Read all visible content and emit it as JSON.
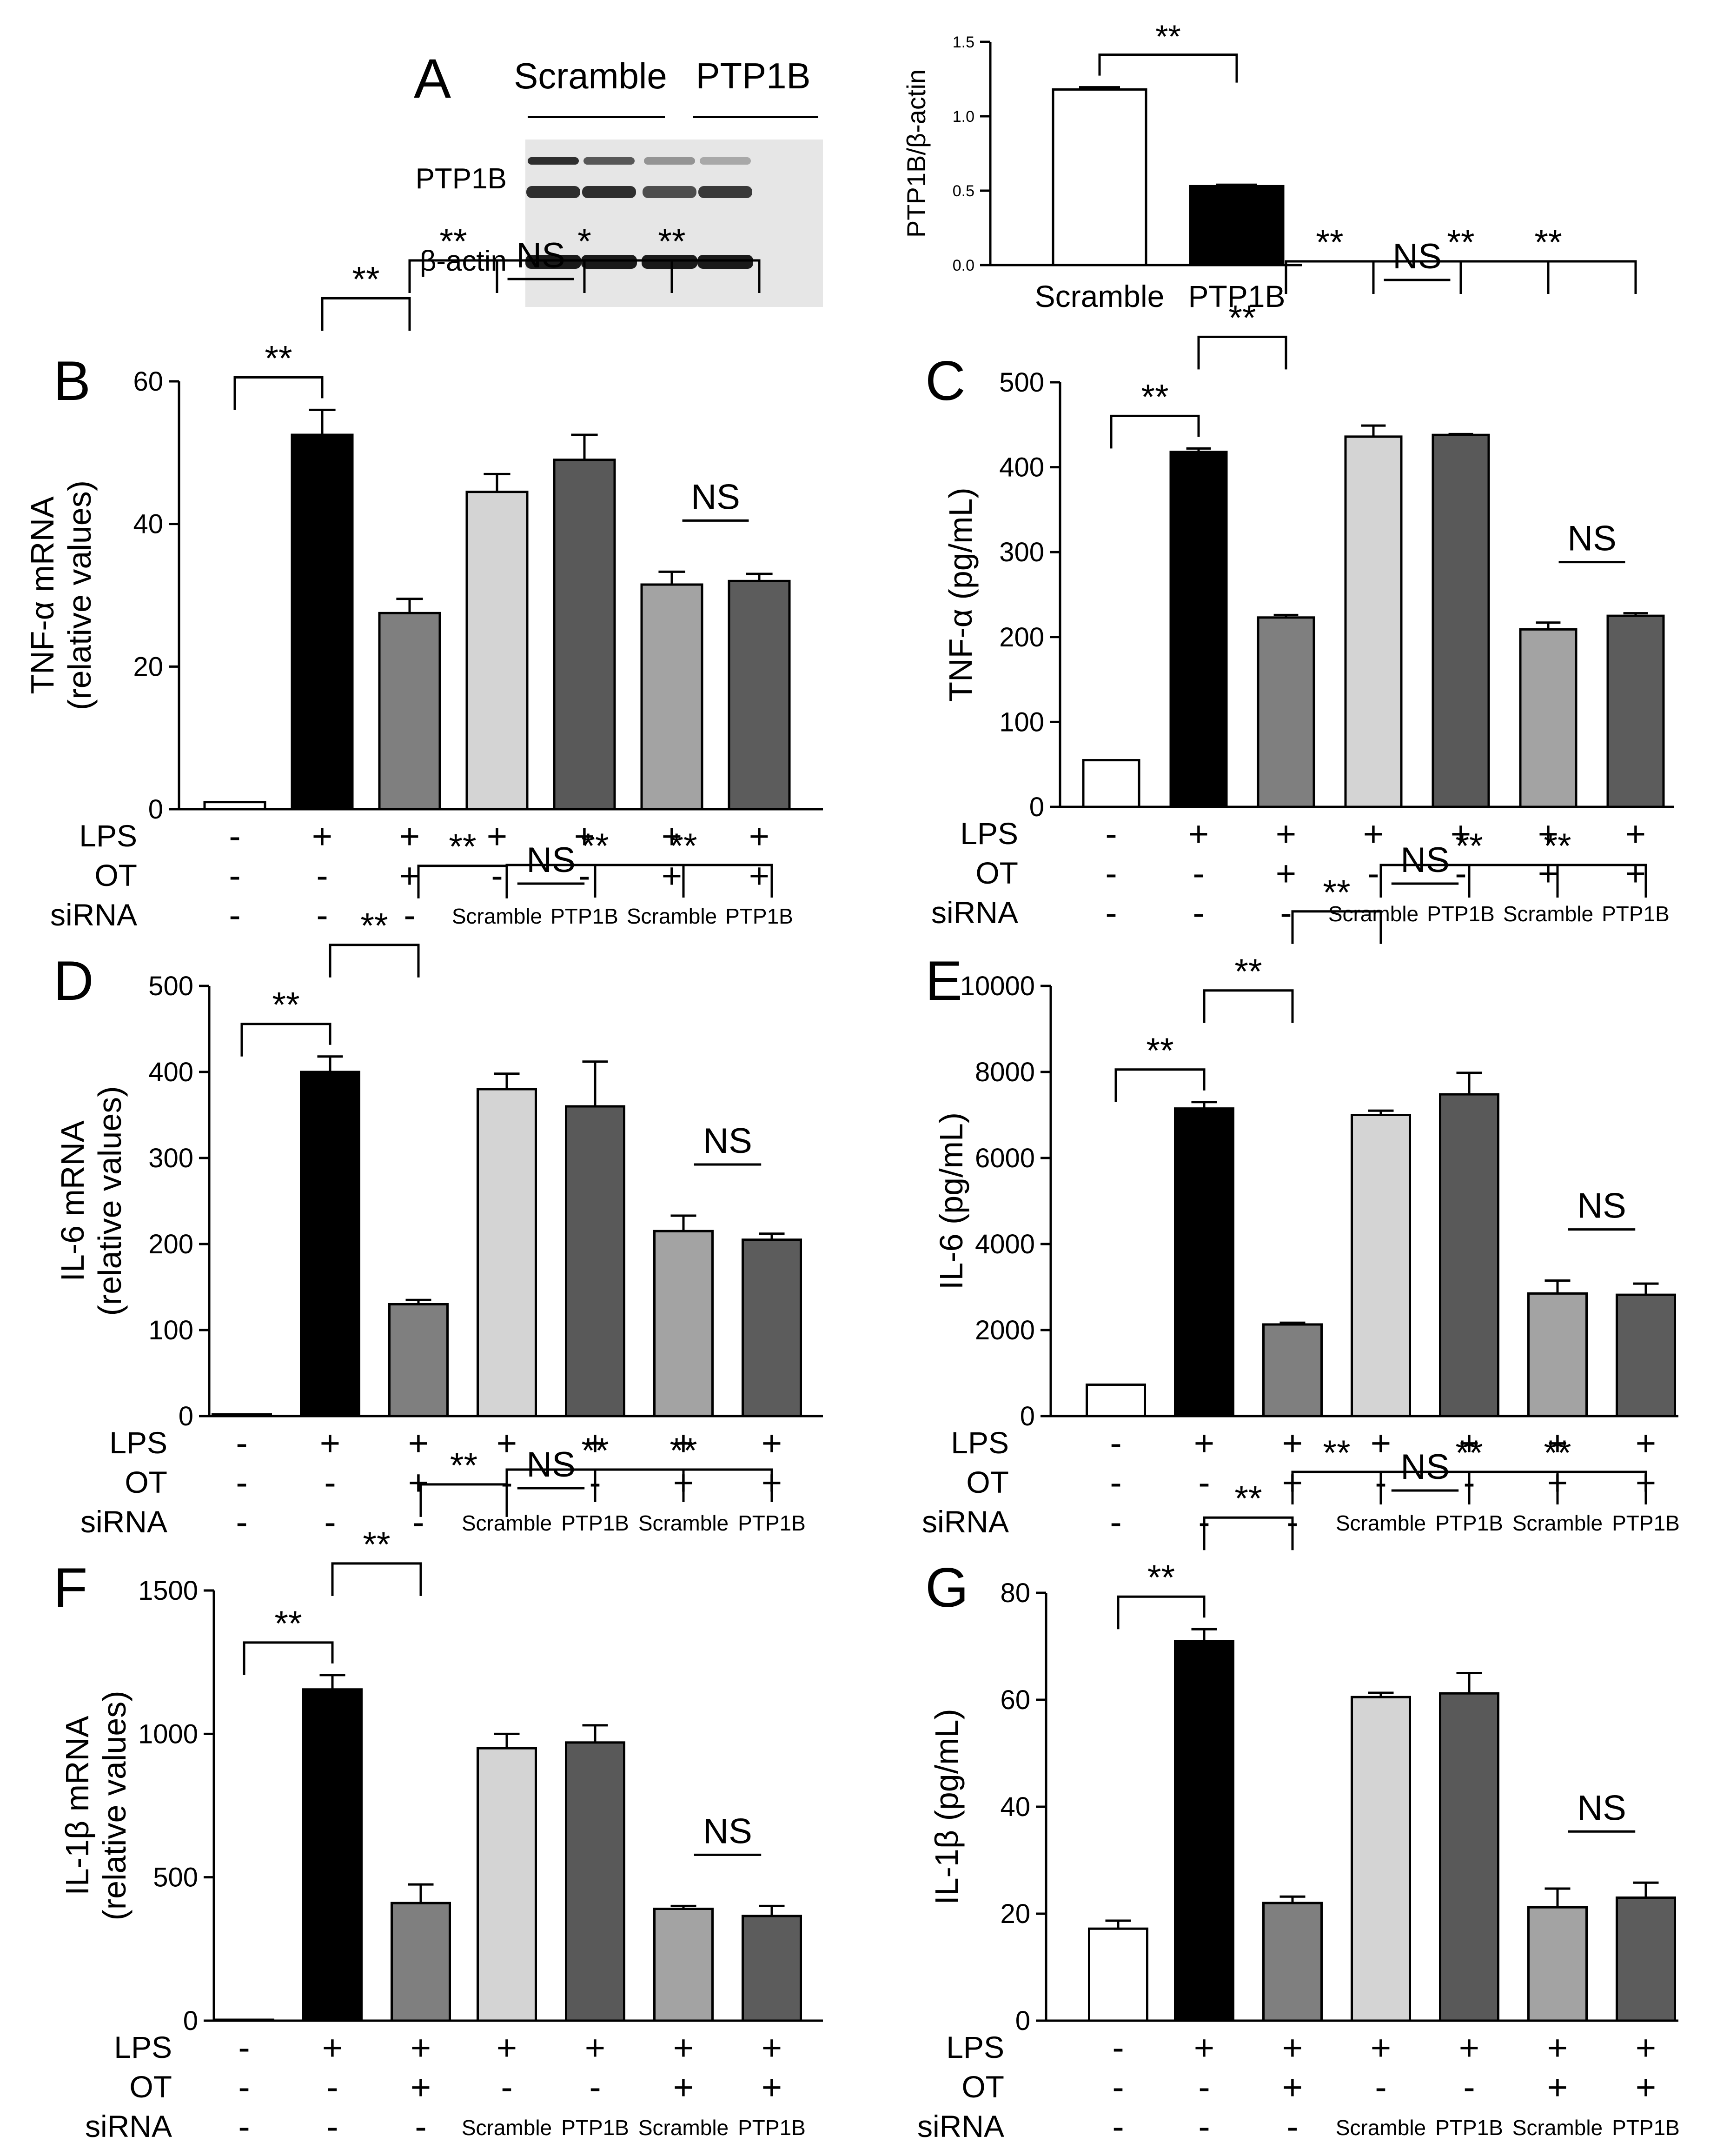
{
  "panel_letters": [
    "A",
    "B",
    "C",
    "D",
    "E",
    "F",
    "G"
  ],
  "western_blot": {
    "header_scramble": "Scramble",
    "header_ptp1b": "PTP1B",
    "row_ptp1b": "PTP1B",
    "row_actin": "β-actin"
  },
  "condition_table": {
    "row_labels": [
      "LPS",
      "OT",
      "siRNA"
    ],
    "lps": [
      "-",
      "+",
      "+",
      "+",
      "+",
      "+",
      "+"
    ],
    "ot": [
      "-",
      "-",
      "+",
      "-",
      "-",
      "+",
      "+"
    ],
    "sirna": [
      "-",
      "-",
      "-",
      "Scramble",
      "PTP1B",
      "Scramble",
      "PTP1B"
    ]
  },
  "chart_data": [
    {
      "panel": "A",
      "type": "bar",
      "categories": [
        "Scramble",
        "PTP1B"
      ],
      "values": [
        1.18,
        0.53
      ],
      "errors": [
        0.015,
        0.01
      ],
      "fills": [
        "#ffffff",
        "#000000"
      ],
      "ylabel": "PTP1B/β-actin",
      "ylim": [
        0,
        1.5
      ],
      "yticks": [
        0.0,
        0.5,
        1.0,
        1.5
      ],
      "ytick_labels": [
        "0.0",
        "0.5",
        "1.0",
        "1.5"
      ],
      "sig": [
        {
          "from": 0,
          "to": 1,
          "label": "**"
        }
      ]
    },
    {
      "panel": "B",
      "type": "bar",
      "values": [
        1,
        52.5,
        27.5,
        44.5,
        49,
        31.5,
        32
      ],
      "errors": [
        0,
        3.5,
        2,
        2.5,
        3.5,
        1.8,
        1
      ],
      "ylabel": "TNF-α mRNA",
      "ylabel2": "(relative values)",
      "ylim": [
        0,
        60
      ],
      "yticks": [
        0,
        20,
        40,
        60
      ],
      "sig": [
        {
          "from": 0,
          "to": 1,
          "label": "**"
        },
        {
          "from": 1,
          "to": 2,
          "label": "**"
        },
        {
          "from": 2,
          "to": 3,
          "label": "**"
        },
        {
          "from": 3,
          "to": 5,
          "label": "*"
        },
        {
          "from": 3,
          "to": 4,
          "label": "NS"
        },
        {
          "from": 4,
          "to": 6,
          "label": "**"
        },
        {
          "from": 5,
          "to": 6,
          "label": "NS"
        }
      ]
    },
    {
      "panel": "C",
      "type": "bar",
      "values": [
        55,
        418,
        223,
        436,
        438,
        209,
        225
      ],
      "errors": [
        0,
        4,
        3,
        13,
        1,
        8,
        3
      ],
      "ylabel": "TNF-α (pg/mL)",
      "ylim": [
        0,
        500
      ],
      "yticks": [
        0,
        100,
        200,
        300,
        400,
        500
      ],
      "sig": [
        {
          "from": 0,
          "to": 1,
          "label": "**"
        },
        {
          "from": 1,
          "to": 2,
          "label": "**"
        },
        {
          "from": 2,
          "to": 3,
          "label": "**"
        },
        {
          "from": 3,
          "to": 5,
          "label": "**"
        },
        {
          "from": 3,
          "to": 4,
          "label": "NS"
        },
        {
          "from": 4,
          "to": 6,
          "label": "**"
        },
        {
          "from": 5,
          "to": 6,
          "label": "NS"
        }
      ]
    },
    {
      "panel": "D",
      "type": "bar",
      "values": [
        2,
        400,
        130,
        380,
        360,
        215,
        205
      ],
      "errors": [
        0,
        18,
        5,
        18,
        52,
        18,
        7
      ],
      "ylabel": "IL-6 mRNA",
      "ylabel2": "(relative values)",
      "ylim": [
        0,
        500
      ],
      "yticks": [
        0,
        100,
        200,
        300,
        400,
        500
      ],
      "sig": [
        {
          "from": 0,
          "to": 1,
          "label": "**"
        },
        {
          "from": 1,
          "to": 2,
          "label": "**"
        },
        {
          "from": 2,
          "to": 3,
          "label": "**"
        },
        {
          "from": 3,
          "to": 5,
          "label": "**"
        },
        {
          "from": 3,
          "to": 4,
          "label": "NS"
        },
        {
          "from": 4,
          "to": 6,
          "label": "**"
        },
        {
          "from": 5,
          "to": 6,
          "label": "NS"
        }
      ]
    },
    {
      "panel": "E",
      "type": "bar",
      "values": [
        730,
        7150,
        2130,
        7000,
        7480,
        2850,
        2820
      ],
      "errors": [
        0,
        150,
        40,
        100,
        500,
        300,
        260
      ],
      "ylabel": "IL-6 (pg/mL)",
      "ylim": [
        0,
        10000
      ],
      "yticks": [
        0,
        2000,
        4000,
        6000,
        8000,
        10000
      ],
      "sig": [
        {
          "from": 0,
          "to": 1,
          "label": "**"
        },
        {
          "from": 1,
          "to": 2,
          "label": "**"
        },
        {
          "from": 2,
          "to": 3,
          "label": "**"
        },
        {
          "from": 3,
          "to": 5,
          "label": "**"
        },
        {
          "from": 3,
          "to": 4,
          "label": "NS"
        },
        {
          "from": 4,
          "to": 6,
          "label": "**"
        },
        {
          "from": 5,
          "to": 6,
          "label": "NS"
        }
      ]
    },
    {
      "panel": "F",
      "type": "bar",
      "values": [
        0,
        1155,
        410,
        950,
        970,
        390,
        365
      ],
      "errors": [
        0,
        50,
        65,
        50,
        60,
        10,
        35
      ],
      "ylabel": "IL-1β mRNA",
      "ylabel2": "(relative values)",
      "ylim": [
        0,
        1500
      ],
      "yticks": [
        0,
        500,
        1000,
        1500
      ],
      "sig": [
        {
          "from": 0,
          "to": 1,
          "label": "**"
        },
        {
          "from": 1,
          "to": 2,
          "label": "**"
        },
        {
          "from": 2,
          "to": 3,
          "label": "**"
        },
        {
          "from": 3,
          "to": 5,
          "label": "**"
        },
        {
          "from": 3,
          "to": 4,
          "label": "NS"
        },
        {
          "from": 4,
          "to": 6,
          "label": "**"
        },
        {
          "from": 5,
          "to": 6,
          "label": "NS"
        }
      ]
    },
    {
      "panel": "G",
      "type": "bar",
      "values": [
        17.2,
        71,
        22,
        60.5,
        61.2,
        21.2,
        23
      ],
      "errors": [
        1.5,
        2.2,
        1.2,
        0.8,
        3.8,
        3.5,
        2.8
      ],
      "ylabel": "IL-1β (pg/mL)",
      "ylim": [
        0,
        80
      ],
      "yticks": [
        0,
        20,
        40,
        60,
        80
      ],
      "sig": [
        {
          "from": 0,
          "to": 1,
          "label": "**"
        },
        {
          "from": 1,
          "to": 2,
          "label": "**"
        },
        {
          "from": 2,
          "to": 3,
          "label": "**"
        },
        {
          "from": 3,
          "to": 5,
          "label": "**"
        },
        {
          "from": 3,
          "to": 4,
          "label": "NS"
        },
        {
          "from": 4,
          "to": 6,
          "label": "**"
        },
        {
          "from": 5,
          "to": 6,
          "label": "NS"
        }
      ]
    }
  ],
  "colors": {
    "group_fills": [
      "#ffffff",
      "#000000",
      "#7f7f7f",
      "#d4d4d4",
      "#595959",
      "#a3a3a3",
      "#5c5c5c"
    ],
    "axis": "#000000",
    "blot_band": "#1a1a1a"
  }
}
